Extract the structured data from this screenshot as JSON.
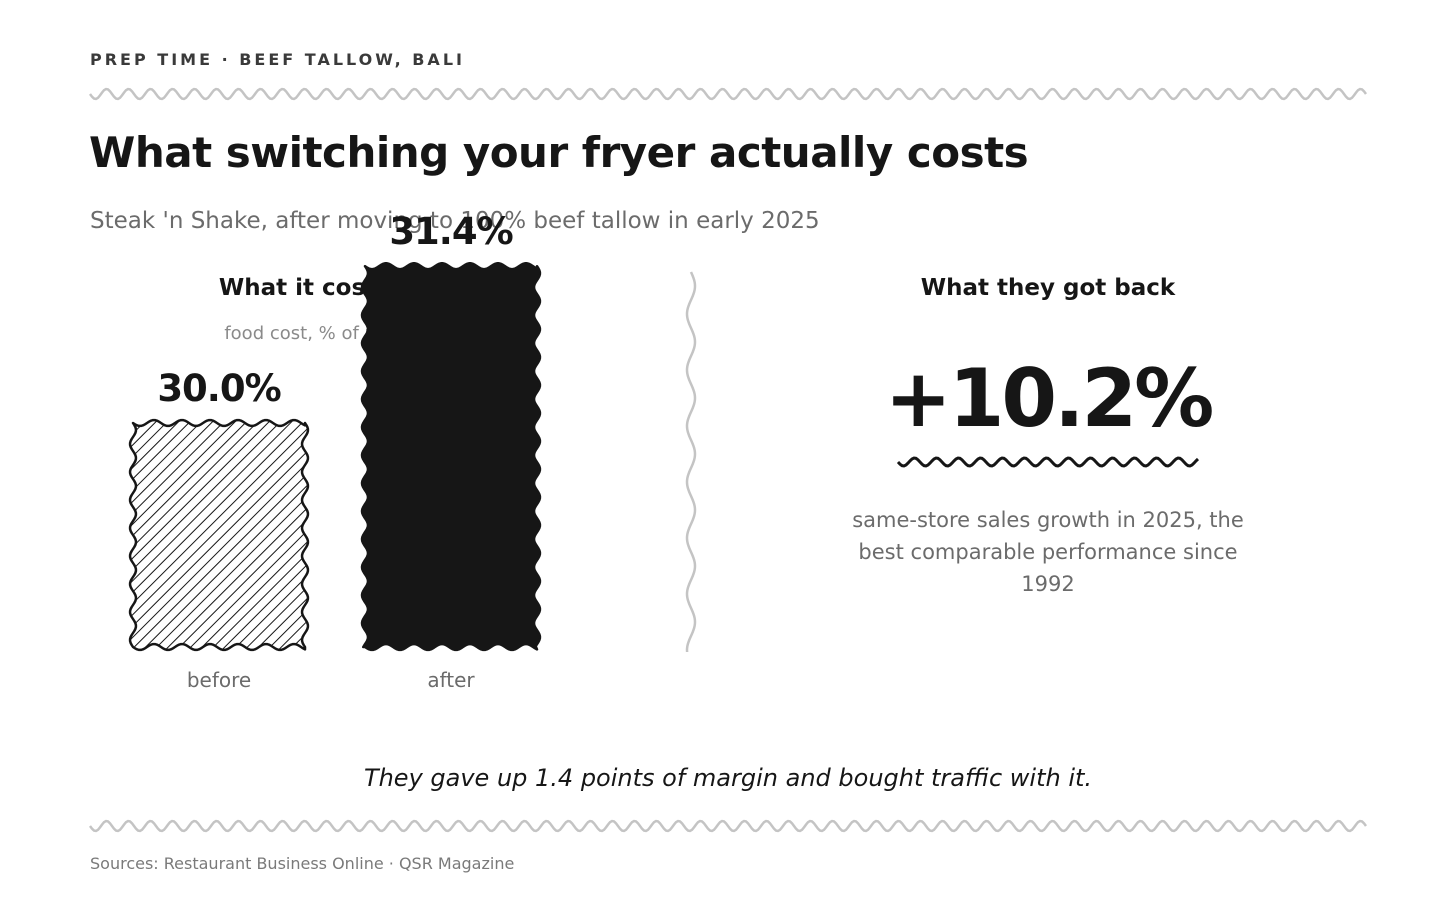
{
  "header": {
    "kicker": "PREP TIME · BEEF TALLOW, BALI",
    "title": "What switching your fryer actually costs",
    "subtitle": "Steak 'n Shake, after moving to 100% beef tallow in early 2025"
  },
  "left_panel": {
    "heading": "What it cost them",
    "subheading": "food cost, % of net sales"
  },
  "right_panel": {
    "heading": "What they got back",
    "stat": "+10.2%",
    "caption": "same-store sales growth in 2025, the best comparable performance since 1992"
  },
  "takeaway": "They gave up 1.4 points of margin and bought traffic with it.",
  "sources": "Sources: Restaurant Business Online · QSR Magazine",
  "colors": {
    "ink": "#161616",
    "muted": "#6b6b6b",
    "squiggle": "#c4c4c4"
  },
  "chart_data": {
    "type": "bar",
    "categories": [
      "before",
      "after"
    ],
    "values": [
      30.0,
      31.4
    ],
    "value_labels": [
      "30.0%",
      "31.4%"
    ],
    "title": "What it cost them",
    "ylabel": "food cost, % of net sales",
    "fills": [
      "hatched",
      "solid"
    ]
  }
}
